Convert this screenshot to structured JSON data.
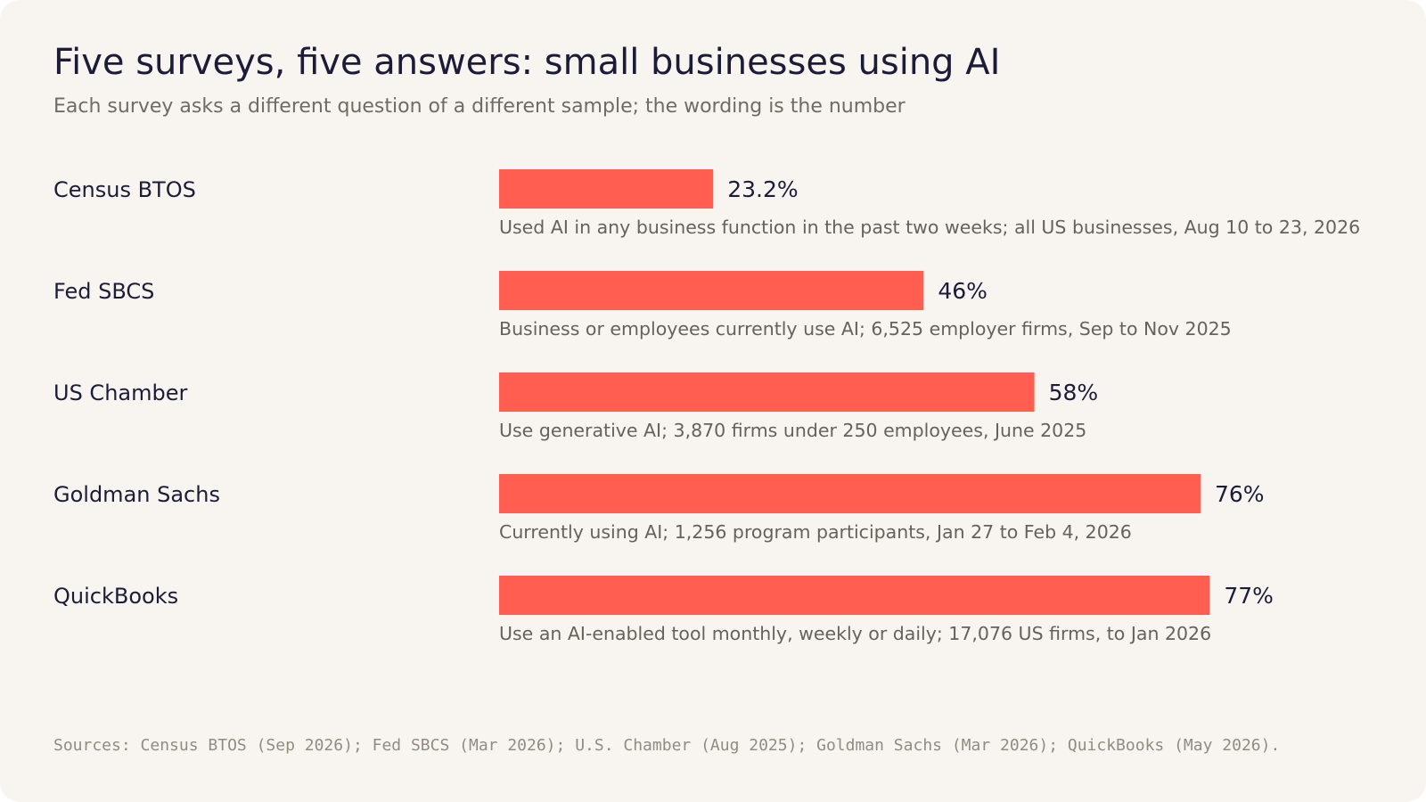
{
  "chart_data": {
    "type": "bar",
    "orientation": "horizontal",
    "title": "Five surveys, five answers: small businesses using AI",
    "subtitle": "Each survey asks a different question of a different sample; the wording is the number",
    "categories": [
      "Census BTOS",
      "Fed SBCS",
      "US Chamber",
      "Goldman Sachs",
      "QuickBooks"
    ],
    "values": [
      23.2,
      46,
      58,
      76,
      77
    ],
    "value_labels": [
      "23.2%",
      "46%",
      "58%",
      "76%",
      "77%"
    ],
    "notes": [
      "Used AI in any business function in the past two weeks; all US businesses, Aug 10 to 23, 2026",
      "Business or employees currently use AI; 6,525 employer firms, Sep to Nov 2025",
      "Use generative AI; 3,870 firms under 250 employees, June 2025",
      "Currently using AI; 1,256 program participants, Jan 27 to Feb 4, 2026",
      "Use an AI-enabled tool monthly, weekly or daily; 17,076 US firms, to Jan 2026"
    ],
    "xlim": [
      0,
      100
    ],
    "grid": false,
    "legend": "none",
    "unit": "%",
    "bar_color": "#ff5e50",
    "sources": "Sources: Census BTOS (Sep 2026); Fed SBCS (Mar 2026); U.S. Chamber (Aug 2025); Goldman Sachs (Mar 2026); QuickBooks (May 2026)."
  },
  "colors": {
    "background": "#f8f5f0",
    "title": "#1c1c38",
    "subtitle": "#6f6a64",
    "note": "#66615b",
    "sources": "#928b80"
  }
}
